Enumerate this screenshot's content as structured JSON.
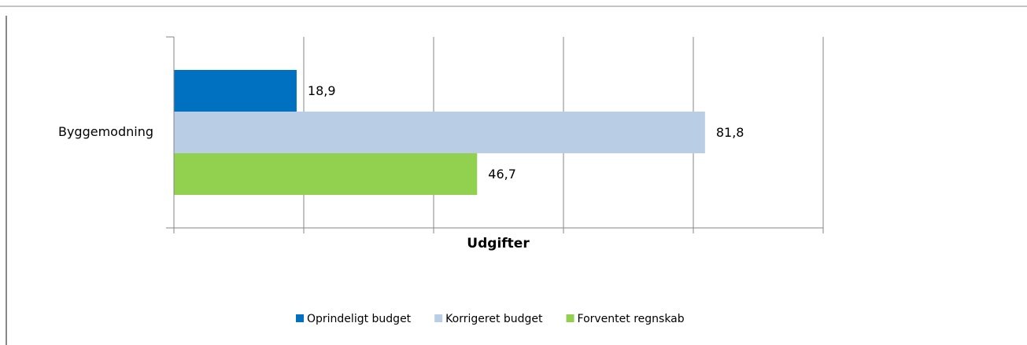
{
  "chart_data": {
    "type": "bar",
    "orientation": "horizontal",
    "categories": [
      "Byggemodning"
    ],
    "series": [
      {
        "name": "Oprindeligt budget",
        "color": "#0070c0",
        "values": [
          18.9
        ],
        "value_labels": [
          "18,9"
        ]
      },
      {
        "name": "Korrigeret budget",
        "color": "#b9cde5",
        "values": [
          81.8
        ],
        "value_labels": [
          "81,8"
        ]
      },
      {
        "name": "Forventet regnskab",
        "color": "#92d050",
        "values": [
          46.7
        ],
        "value_labels": [
          "46,7"
        ]
      }
    ],
    "x_label": "Udgifter",
    "xlim": [
      0,
      100
    ],
    "xticks": [
      0,
      20,
      40,
      60,
      80,
      100
    ],
    "grid": true,
    "legend": "bottom"
  }
}
